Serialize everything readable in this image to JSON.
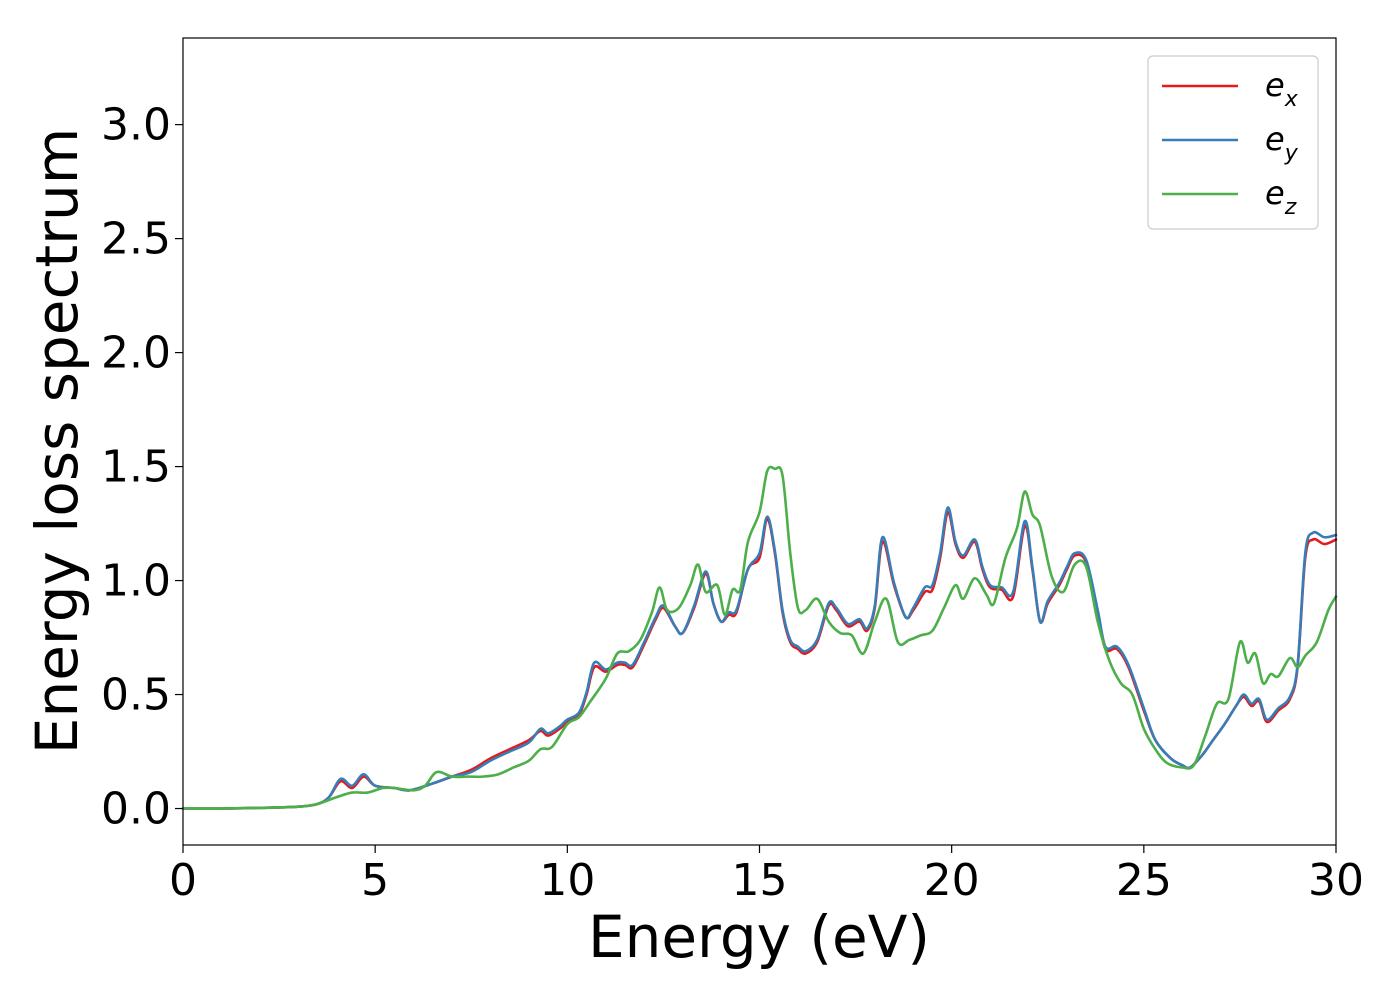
{
  "chart_data": {
    "type": "line",
    "title": "",
    "xlabel": "Energy (eV)",
    "ylabel": "Energy loss spectrum",
    "xlim": [
      0,
      30
    ],
    "ylim": [
      -0.16,
      3.38
    ],
    "xticks": [
      0,
      5,
      10,
      15,
      20,
      25,
      30
    ],
    "xtick_labels": [
      "0",
      "5",
      "10",
      "15",
      "20",
      "25",
      "30"
    ],
    "yticks": [
      0.0,
      0.5,
      1.0,
      1.5,
      2.0,
      2.5,
      3.0
    ],
    "ytick_labels": [
      "0.0",
      "0.5",
      "1.0",
      "1.5",
      "2.0",
      "2.5",
      "3.0"
    ],
    "grid": false,
    "legend_position": "top-right",
    "series": [
      {
        "name": "e_x",
        "legend_main": "e",
        "legend_sub": "x",
        "color": "#e41a1c",
        "x": [
          0,
          1,
          2,
          3,
          3.5,
          3.8,
          4.1,
          4.4,
          4.7,
          5.0,
          5.5,
          5.9,
          6.5,
          7.0,
          7.5,
          8.0,
          8.5,
          9.0,
          9.3,
          9.5,
          9.8,
          10.0,
          10.3,
          10.5,
          10.7,
          11.0,
          11.3,
          11.5,
          11.7,
          12.0,
          12.3,
          12.5,
          12.8,
          13.0,
          13.3,
          13.6,
          13.8,
          14.0,
          14.2,
          14.4,
          14.7,
          15.0,
          15.2,
          15.4,
          15.6,
          15.8,
          16.0,
          16.2,
          16.5,
          16.8,
          17.0,
          17.3,
          17.6,
          17.8,
          18.0,
          18.2,
          18.5,
          18.8,
          19.0,
          19.3,
          19.5,
          19.7,
          19.9,
          20.1,
          20.3,
          20.6,
          20.8,
          21.0,
          21.3,
          21.6,
          21.9,
          22.1,
          22.3,
          22.5,
          22.8,
          23.0,
          23.2,
          23.5,
          23.8,
          24.0,
          24.3,
          24.6,
          25.0,
          25.3,
          25.7,
          26.0,
          26.2,
          26.5,
          26.8,
          27.1,
          27.4,
          27.6,
          27.8,
          28.0,
          28.2,
          28.5,
          28.8,
          29.0,
          29.2,
          29.4,
          29.7,
          30.0
        ],
        "y": [
          0.0,
          0.0,
          0.003,
          0.008,
          0.02,
          0.05,
          0.12,
          0.09,
          0.14,
          0.1,
          0.09,
          0.08,
          0.11,
          0.14,
          0.17,
          0.22,
          0.26,
          0.3,
          0.34,
          0.32,
          0.35,
          0.38,
          0.41,
          0.5,
          0.62,
          0.6,
          0.63,
          0.63,
          0.62,
          0.72,
          0.83,
          0.88,
          0.8,
          0.77,
          0.88,
          1.03,
          0.9,
          0.82,
          0.85,
          0.86,
          1.05,
          1.1,
          1.27,
          1.12,
          0.86,
          0.73,
          0.7,
          0.68,
          0.73,
          0.89,
          0.87,
          0.8,
          0.82,
          0.78,
          0.88,
          1.17,
          0.98,
          0.84,
          0.87,
          0.95,
          0.96,
          1.1,
          1.3,
          1.16,
          1.1,
          1.17,
          1.05,
          0.97,
          0.96,
          0.93,
          1.24,
          1.05,
          0.82,
          0.9,
          0.98,
          1.05,
          1.11,
          1.08,
          0.86,
          0.7,
          0.7,
          0.62,
          0.43,
          0.3,
          0.22,
          0.19,
          0.18,
          0.23,
          0.3,
          0.37,
          0.45,
          0.49,
          0.45,
          0.47,
          0.38,
          0.43,
          0.48,
          0.62,
          1.1,
          1.18,
          1.16,
          1.18
        ]
      },
      {
        "name": "e_y",
        "legend_main": "e",
        "legend_sub": "y",
        "color": "#377eb8",
        "x": [
          0,
          1,
          2,
          3,
          3.5,
          3.8,
          4.1,
          4.4,
          4.7,
          5.0,
          5.5,
          5.9,
          6.5,
          7.0,
          7.5,
          8.0,
          8.5,
          9.0,
          9.3,
          9.5,
          9.8,
          10.0,
          10.3,
          10.5,
          10.7,
          11.0,
          11.3,
          11.5,
          11.7,
          12.0,
          12.3,
          12.5,
          12.8,
          13.0,
          13.3,
          13.6,
          13.8,
          14.0,
          14.2,
          14.4,
          14.7,
          15.0,
          15.2,
          15.4,
          15.6,
          15.8,
          16.0,
          16.2,
          16.5,
          16.8,
          17.0,
          17.3,
          17.6,
          17.8,
          18.0,
          18.2,
          18.5,
          18.8,
          19.0,
          19.3,
          19.5,
          19.7,
          19.9,
          20.1,
          20.3,
          20.6,
          20.8,
          21.0,
          21.3,
          21.6,
          21.9,
          22.1,
          22.3,
          22.5,
          22.8,
          23.0,
          23.2,
          23.5,
          23.8,
          24.0,
          24.3,
          24.6,
          25.0,
          25.3,
          25.7,
          26.0,
          26.2,
          26.5,
          26.8,
          27.1,
          27.4,
          27.6,
          27.8,
          28.0,
          28.2,
          28.5,
          28.8,
          29.0,
          29.2,
          29.4,
          29.7,
          30.0
        ],
        "y": [
          0.0,
          0.0,
          0.003,
          0.008,
          0.02,
          0.05,
          0.13,
          0.1,
          0.15,
          0.1,
          0.09,
          0.08,
          0.11,
          0.14,
          0.16,
          0.21,
          0.25,
          0.29,
          0.35,
          0.33,
          0.36,
          0.39,
          0.42,
          0.51,
          0.64,
          0.61,
          0.64,
          0.64,
          0.63,
          0.73,
          0.84,
          0.89,
          0.8,
          0.77,
          0.89,
          1.04,
          0.9,
          0.82,
          0.86,
          0.87,
          1.05,
          1.12,
          1.28,
          1.13,
          0.87,
          0.74,
          0.71,
          0.69,
          0.74,
          0.9,
          0.88,
          0.81,
          0.83,
          0.79,
          0.89,
          1.19,
          0.99,
          0.84,
          0.88,
          0.97,
          0.98,
          1.12,
          1.32,
          1.17,
          1.11,
          1.18,
          1.06,
          0.98,
          0.97,
          0.95,
          1.26,
          1.06,
          0.82,
          0.91,
          0.99,
          1.06,
          1.12,
          1.09,
          0.87,
          0.71,
          0.71,
          0.63,
          0.44,
          0.3,
          0.22,
          0.19,
          0.18,
          0.23,
          0.3,
          0.37,
          0.45,
          0.5,
          0.46,
          0.48,
          0.39,
          0.44,
          0.49,
          0.63,
          1.12,
          1.21,
          1.19,
          1.2
        ]
      },
      {
        "name": "e_z",
        "legend_main": "e",
        "legend_sub": "z",
        "color": "#4daf4a",
        "x": [
          0,
          1,
          2,
          3,
          3.5,
          4.0,
          4.4,
          4.8,
          5.2,
          5.5,
          6.0,
          6.3,
          6.6,
          7.0,
          7.4,
          7.8,
          8.2,
          8.6,
          9.0,
          9.3,
          9.6,
          10.0,
          10.3,
          10.6,
          11.0,
          11.3,
          11.6,
          11.9,
          12.2,
          12.4,
          12.6,
          12.9,
          13.2,
          13.4,
          13.6,
          13.9,
          14.1,
          14.3,
          14.5,
          14.7,
          15.0,
          15.2,
          15.4,
          15.6,
          15.8,
          16.0,
          16.2,
          16.5,
          16.8,
          17.1,
          17.4,
          17.7,
          18.0,
          18.3,
          18.6,
          18.9,
          19.2,
          19.5,
          19.8,
          20.1,
          20.3,
          20.6,
          20.9,
          21.1,
          21.4,
          21.7,
          21.9,
          22.1,
          22.3,
          22.6,
          22.9,
          23.2,
          23.5,
          23.8,
          24.1,
          24.4,
          24.7,
          25.0,
          25.3,
          25.6,
          26.0,
          26.3,
          26.6,
          26.9,
          27.2,
          27.5,
          27.7,
          27.9,
          28.1,
          28.3,
          28.5,
          28.8,
          29.0,
          29.2,
          29.5,
          29.8,
          30.0
        ],
        "y": [
          0.0,
          0.0,
          0.003,
          0.008,
          0.02,
          0.05,
          0.07,
          0.07,
          0.09,
          0.09,
          0.08,
          0.1,
          0.16,
          0.14,
          0.14,
          0.14,
          0.15,
          0.18,
          0.21,
          0.26,
          0.27,
          0.37,
          0.4,
          0.47,
          0.57,
          0.68,
          0.69,
          0.74,
          0.86,
          0.97,
          0.87,
          0.88,
          0.98,
          1.07,
          0.95,
          0.98,
          0.85,
          0.96,
          0.96,
          1.17,
          1.3,
          1.48,
          1.49,
          1.46,
          1.12,
          0.88,
          0.87,
          0.92,
          0.82,
          0.77,
          0.76,
          0.68,
          0.82,
          0.92,
          0.73,
          0.74,
          0.76,
          0.78,
          0.88,
          0.98,
          0.92,
          1.01,
          0.94,
          0.9,
          1.1,
          1.23,
          1.39,
          1.29,
          1.24,
          1.02,
          0.95,
          1.07,
          1.06,
          0.82,
          0.65,
          0.55,
          0.5,
          0.35,
          0.26,
          0.2,
          0.18,
          0.19,
          0.32,
          0.46,
          0.48,
          0.73,
          0.64,
          0.68,
          0.55,
          0.59,
          0.58,
          0.66,
          0.62,
          0.67,
          0.73,
          0.87,
          0.93
        ]
      }
    ]
  }
}
